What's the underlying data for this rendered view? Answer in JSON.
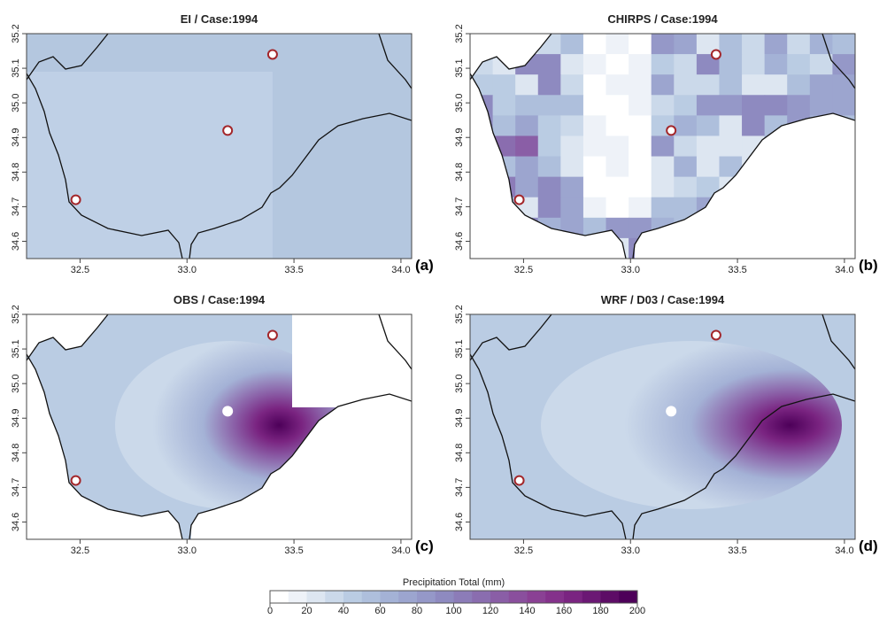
{
  "panels": [
    {
      "title": "EI / Case:1994",
      "label": "(a)"
    },
    {
      "title": "CHIRPS / Case:1994",
      "label": "(b)"
    },
    {
      "title": "OBS / Case:1994",
      "label": "(c)"
    },
    {
      "title": "WRF / D03 / Case:1994",
      "label": "(d)"
    }
  ],
  "map": {
    "xlim": [
      32.25,
      34.05
    ],
    "ylim": [
      34.55,
      35.2
    ],
    "xticks": [
      32.5,
      {
        "value": 33.0,
        "label": "33.0"
      },
      33.5,
      {
        "value": 34.0,
        "label": "34.0"
      }
    ],
    "yticks": [
      34.6,
      34.7,
      34.8,
      34.9,
      {
        "value": 35.0,
        "label": "35.0"
      },
      35.1,
      35.2
    ],
    "stations": [
      {
        "lon": 32.48,
        "lat": 34.72
      },
      {
        "lon": 33.19,
        "lat": 34.92
      },
      {
        "lon": 33.4,
        "lat": 35.14
      }
    ]
  },
  "colorbar": {
    "label": "Precipitation Total (mm)",
    "lim": [
      0,
      200
    ],
    "ticks": [
      0,
      20,
      40,
      60,
      80,
      100,
      120,
      140,
      160,
      180,
      200
    ],
    "colors": [
      "#ffffff",
      "#eef2f8",
      "#dde6f1",
      "#cbd9ea",
      "#bacce3",
      "#aebfdc",
      "#a4b2d6",
      "#9ca5cf",
      "#9598c8",
      "#8e8ac0",
      "#8c7cb8",
      "#8a6daf",
      "#8a5ea6",
      "#8a4f9d",
      "#8a4094",
      "#84318b",
      "#7a2481",
      "#6b1874",
      "#5d0c66",
      "#4d0059"
    ]
  }
}
